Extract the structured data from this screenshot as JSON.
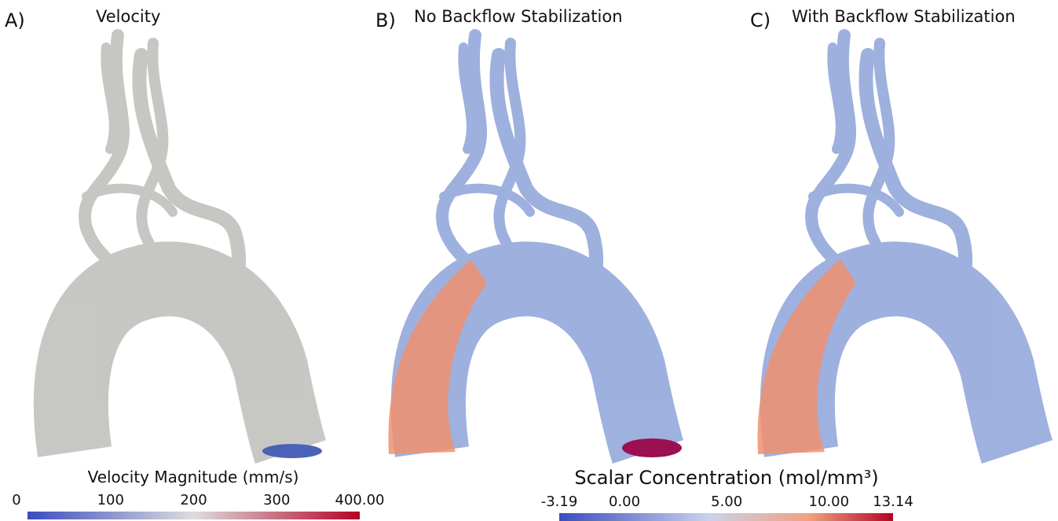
{
  "panels": [
    {
      "label": "A)",
      "title": "Velocity"
    },
    {
      "label": "B)",
      "title": "No Backflow Stabilization"
    },
    {
      "label": "C)",
      "title": "With Backflow Stabilization"
    }
  ],
  "colorbars": [
    {
      "title": "Velocity Magnitude (mm/s)",
      "range": [
        0,
        400
      ],
      "ticks": [
        {
          "value": 0,
          "label": "0"
        },
        {
          "value": 100,
          "label": "100"
        },
        {
          "value": 200,
          "label": "200"
        },
        {
          "value": 300,
          "label": "300"
        },
        {
          "value": 400,
          "label": "400.00"
        }
      ]
    },
    {
      "title": "Scalar Concentration (mol/mm³)",
      "range": [
        -3.19,
        13.14
      ],
      "ticks": [
        {
          "value": -3.19,
          "label": "-3.19"
        },
        {
          "value": 0,
          "label": "0.00"
        },
        {
          "value": 5,
          "label": "5.00"
        },
        {
          "value": 10,
          "label": "10.00"
        },
        {
          "value": 13.14,
          "label": "13.14"
        }
      ]
    }
  ]
}
